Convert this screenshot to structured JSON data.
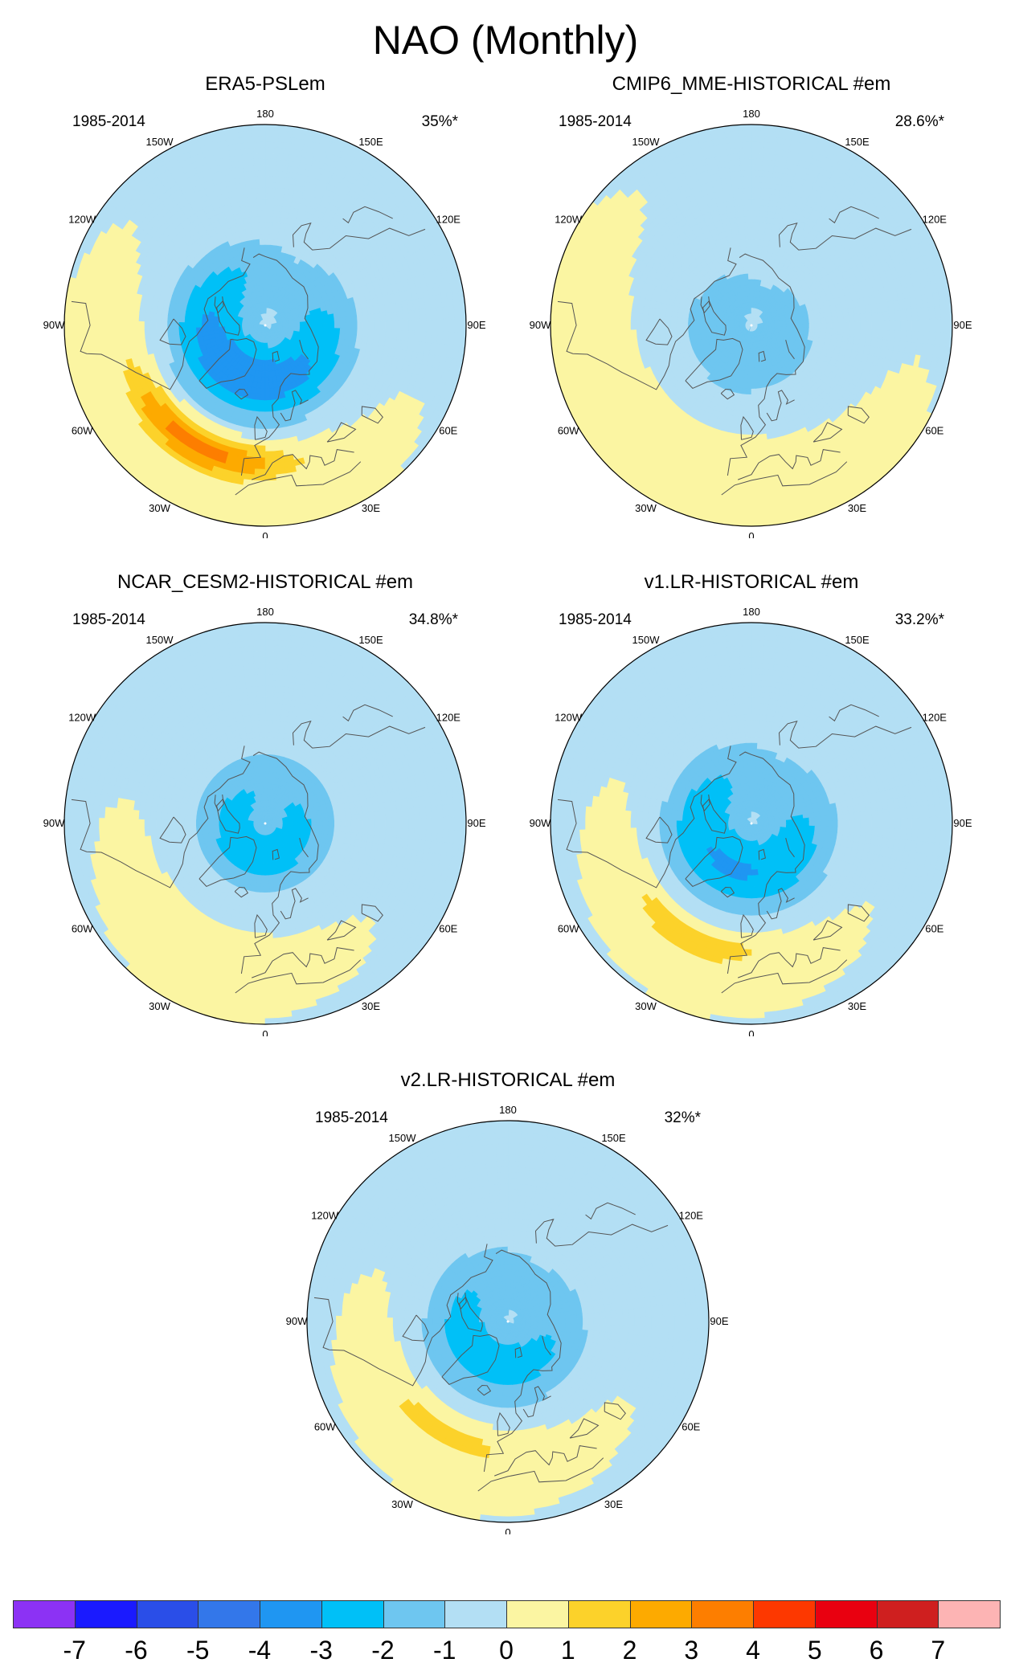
{
  "title": "NAO (Monthly)",
  "panels": [
    {
      "id": "era5",
      "title": "ERA5-PSLem",
      "period": "1985-2014",
      "variance": "35%*",
      "pattern": {
        "center_neg": -3.5,
        "center_neg_lon": -25,
        "center_neg_lat": 70,
        "atlantic_pos": 3.5,
        "atlantic_pos_lon": -30,
        "atlantic_pos_lat": 42,
        "pacific": 0
      }
    },
    {
      "id": "cmip6",
      "title": "CMIP6_MME-HISTORICAL  #em",
      "period": "1985-2014",
      "variance": "28.6%*",
      "pattern": {
        "center_neg": -1.2,
        "center_neg_lon": -20,
        "center_neg_lat": 75,
        "atlantic_pos": 0.8,
        "atlantic_pos_lon": -30,
        "atlantic_pos_lat": 42,
        "pacific": 0
      }
    },
    {
      "id": "cesm2",
      "title": "NCAR_CESM2-HISTORICAL  #em",
      "period": "1985-2014",
      "variance": "34.8%*",
      "pattern": {
        "center_neg": -2.0,
        "center_neg_lon": -15,
        "center_neg_lat": 78,
        "atlantic_pos": 0.6,
        "atlantic_pos_lon": -30,
        "atlantic_pos_lat": 42,
        "pacific": -0.8
      }
    },
    {
      "id": "v1lr",
      "title": "v1.LR-HISTORICAL  #em",
      "period": "1985-2014",
      "variance": "33.2%*",
      "pattern": {
        "center_neg": -2.8,
        "center_neg_lon": -25,
        "center_neg_lat": 72,
        "atlantic_pos": 1.6,
        "atlantic_pos_lon": -28,
        "atlantic_pos_lat": 45,
        "pacific": -0.3
      }
    },
    {
      "id": "v2lr",
      "title": "v2.LR-HISTORICAL  #em",
      "period": "1985-2014",
      "variance": "32%*",
      "pattern": {
        "center_neg": -2.2,
        "center_neg_lon": -30,
        "center_neg_lat": 73,
        "atlantic_pos": 1.4,
        "atlantic_pos_lon": -30,
        "atlantic_pos_lat": 45,
        "pacific": -0.2
      }
    }
  ],
  "lon_labels": [
    "180",
    "150E",
    "120E",
    "90E",
    "60E",
    "30E",
    "0",
    "30W",
    "60W",
    "90W",
    "120W",
    "150W"
  ],
  "colorbar": {
    "labels": [
      "-7",
      "-6",
      "-5",
      "-4",
      "-3",
      "-2",
      "-1",
      "0",
      "1",
      "2",
      "3",
      "4",
      "5",
      "6",
      "7"
    ],
    "colors": [
      "#8c32f4",
      "#1a1aff",
      "#2a4ee8",
      "#3377ea",
      "#1f96f2",
      "#00c0f7",
      "#6ec6f0",
      "#b3dff4",
      "#fbf5a2",
      "#fcd22a",
      "#fdaa00",
      "#fd7e00",
      "#fd3800",
      "#e90010",
      "#cf1f1f",
      "#fdb4b4"
    ]
  }
}
